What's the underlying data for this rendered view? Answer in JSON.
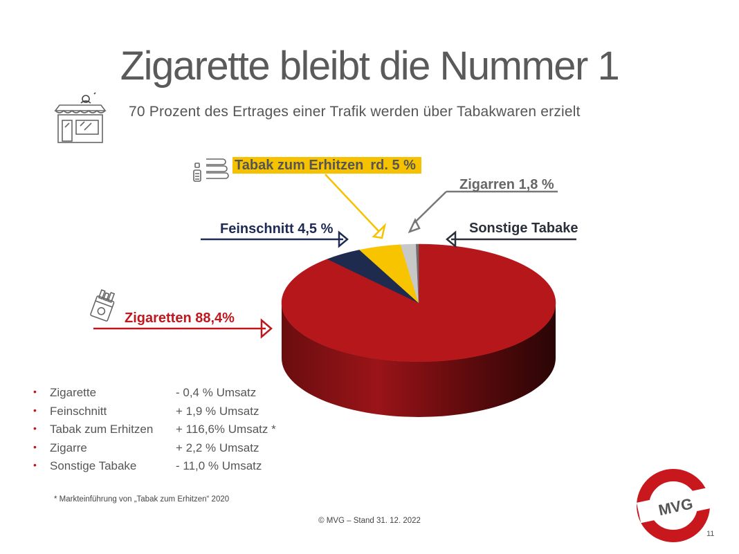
{
  "slide": {
    "title": "Zigarette bleibt die Nummer 1",
    "subtitle": "70 Prozent des Ertrages einer Trafik werden über Tabakwaren erzielt",
    "footnote": "* Markteinführung von „Tabak zum Erhitzen“ 2020",
    "copyright": "© MVG – Stand 31. 12. 2022",
    "page_number": "11",
    "logo_text": "MVG"
  },
  "chart_data": {
    "type": "pie",
    "style": "3d",
    "slices": [
      {
        "label": "Zigaretten",
        "display": "Zigaretten 88,4%",
        "value": 88.4,
        "color": "#b5171b"
      },
      {
        "label": "Feinschnitt",
        "display": "Feinschnitt 4,5 %",
        "value": 4.5,
        "color": "#1f2a4f"
      },
      {
        "label": "Tabak zum Erhitzen",
        "display": "Tabak zum Erhitzen",
        "value_text": "rd. 5 %",
        "value": 5.0,
        "color": "#f8c400"
      },
      {
        "label": "Zigarren",
        "display": "Zigarren 1,8 %",
        "value": 1.8,
        "color": "#c8c8c8"
      },
      {
        "label": "Sonstige Tabake",
        "display": "Sonstige Tabake",
        "value": 0.3,
        "color": "#6e6e6e"
      }
    ]
  },
  "stats": [
    {
      "name": "Zigarette",
      "change": "- 0,4 % Umsatz"
    },
    {
      "name": "Feinschnitt",
      "change": "+ 1,9 % Umsatz"
    },
    {
      "name": "Tabak zum Erhitzen",
      "change": "+ 116,6% Umsatz *"
    },
    {
      "name": "Zigarre",
      "change": "+ 2,2 % Umsatz"
    },
    {
      "name": "Sonstige Tabake",
      "change": "- 11,0 % Umsatz"
    }
  ],
  "colors": {
    "accent_red": "#c0161d",
    "navy": "#1e2a55",
    "yellow": "#f6c200",
    "gray": "#666666"
  },
  "icons": [
    "shop-icon",
    "heater-device-icon",
    "cigarette-pack-icon"
  ]
}
